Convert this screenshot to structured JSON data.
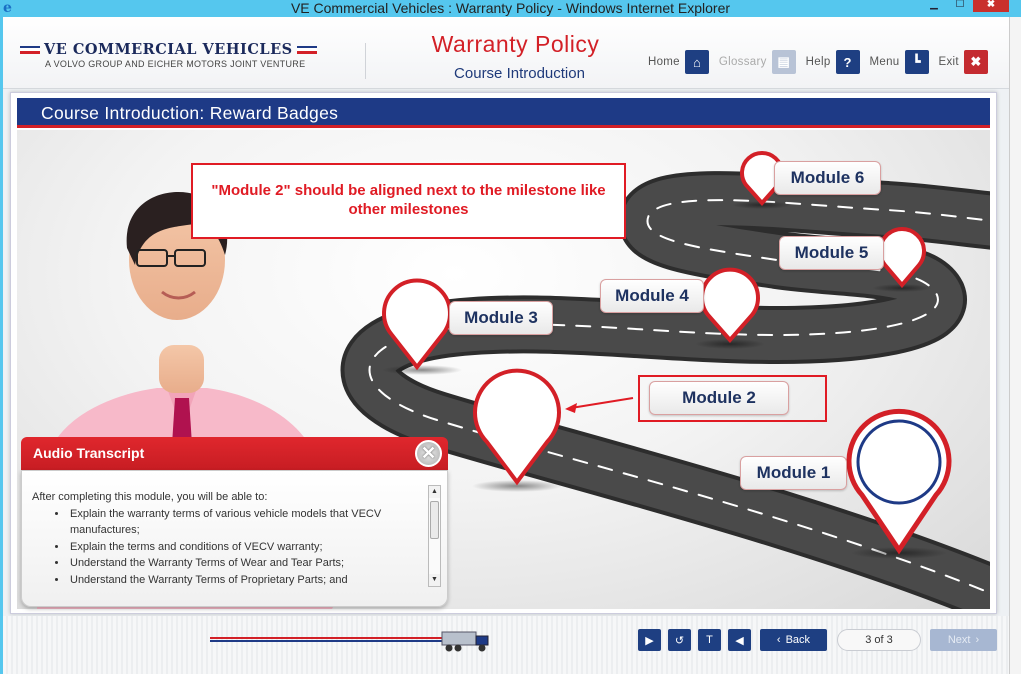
{
  "window": {
    "title": "VE Commercial Vehicles : Warranty Policy - Windows Internet Explorer",
    "app_icon": "ie-icon",
    "minimize": "▁",
    "maximize": "☐",
    "close": "✖"
  },
  "header": {
    "logo_main": "VE COMMERCIAL VEHICLES",
    "logo_sub": "A VOLVO GROUP AND EICHER MOTORS JOINT VENTURE",
    "course_title": "Warranty Policy",
    "course_subtitle": "Course Introduction",
    "nav": [
      {
        "label": "Home",
        "icon": "home-icon",
        "glyph": "⌂",
        "enabled": true
      },
      {
        "label": "Glossary",
        "icon": "glossary-icon",
        "glyph": "▤",
        "enabled": false
      },
      {
        "label": "Help",
        "icon": "help-icon",
        "glyph": "?",
        "enabled": true
      },
      {
        "label": "Menu",
        "icon": "menu-icon",
        "glyph": "┗",
        "enabled": true
      },
      {
        "label": "Exit",
        "icon": "exit-icon",
        "glyph": "✖",
        "enabled": true
      }
    ]
  },
  "slide": {
    "title": "Course Introduction: Reward Badges",
    "modules": [
      "Module 1",
      "Module 2",
      "Module 3",
      "Module 4",
      "Module 5",
      "Module 6"
    ],
    "annotation": "\"Module 2\" should be aligned next to the milestone like other milestones"
  },
  "transcript": {
    "title": "Audio Transcript",
    "close_glyph": "✕",
    "intro": "After completing this module, you will be able to:",
    "items": [
      "Explain the warranty terms of various vehicle models that VECV manufactures;",
      "Explain the terms and conditions of VECV warranty;",
      "Understand the Warranty Terms of Wear and Tear Parts;",
      "Understand the Warranty Terms of Proprietary Parts; and"
    ]
  },
  "footer": {
    "controls": [
      {
        "name": "play-button",
        "icon": "play-icon",
        "glyph": "▶"
      },
      {
        "name": "replay-button",
        "icon": "replay-icon",
        "glyph": "↺"
      },
      {
        "name": "transcript-button",
        "icon": "transcript-icon",
        "glyph": "T"
      },
      {
        "name": "audio-button",
        "icon": "speaker-icon",
        "glyph": "◀"
      }
    ],
    "back_label": "Back",
    "next_label": "Next",
    "page_indicator": "3 of 3",
    "progress": 1.0
  },
  "colors": {
    "brand_red": "#d32027",
    "brand_blue": "#1e3a86",
    "titlebar": "#55c7ee"
  }
}
